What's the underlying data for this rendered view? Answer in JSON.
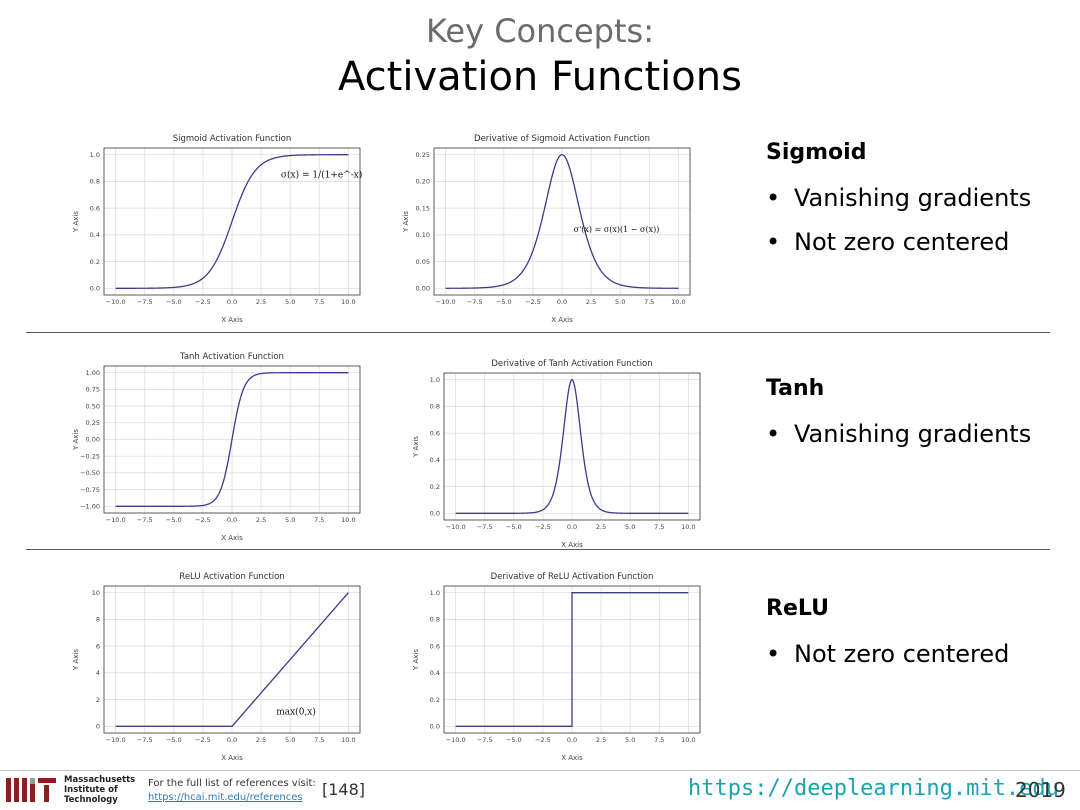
{
  "slide": {
    "kicker": "Key Concepts:",
    "title": "Activation Functions"
  },
  "sections": [
    {
      "heading": "Sigmoid",
      "bullets": [
        "Vanishing gradients",
        "Not zero centered"
      ]
    },
    {
      "heading": "Tanh",
      "bullets": [
        "Vanishing gradients"
      ]
    },
    {
      "heading": "ReLU",
      "bullets": [
        "Not zero centered"
      ]
    }
  ],
  "footer": {
    "institution": [
      "Massachusetts",
      "Institute of",
      "Technology"
    ],
    "ref_text": "For the full list of references visit:",
    "ref_link": "https://hcai.mit.edu/references",
    "ref_number": "[148]",
    "site": "https://deeplearning.mit.edu",
    "year": "2019"
  },
  "colors": {
    "line": "#3b3b8f",
    "grid": "#d9d9d9",
    "site": "#1aa3b0"
  },
  "chart_data": [
    {
      "id": "sigmoid",
      "type": "line",
      "title": "Sigmoid Activation Function",
      "xlabel": "X Axis",
      "ylabel": "Y Axis",
      "func": "sigmoid",
      "xlim": [
        -10,
        10
      ],
      "ylim": [
        0,
        1.0
      ],
      "grid": true,
      "xticks": [
        -10.0,
        -7.5,
        -5.0,
        -2.5,
        0.0,
        2.5,
        5.0,
        7.5,
        10.0
      ],
      "yticks": [
        0.0,
        0.2,
        0.4,
        0.6,
        0.8,
        1.0
      ],
      "ydec": 1,
      "annotation": "σ(x) = 1/(1+e^-x)"
    },
    {
      "id": "sigmoid-deriv",
      "type": "line",
      "title": "Derivative of Sigmoid Activation Function",
      "xlabel": "X Axis",
      "ylabel": "Y Axis",
      "func": "sigmoid_deriv",
      "xlim": [
        -10,
        10
      ],
      "ylim": [
        0,
        0.25
      ],
      "grid": true,
      "xticks": [
        -10.0,
        -7.5,
        -5.0,
        -2.5,
        0.0,
        2.5,
        5.0,
        7.5,
        10.0
      ],
      "yticks": [
        0.0,
        0.05,
        0.1,
        0.15,
        0.2,
        0.25
      ],
      "ydec": 2,
      "annotation": "σ'(x) = σ(x)(1 − σ(x))"
    },
    {
      "id": "tanh",
      "type": "line",
      "title": "Tanh Activation Function",
      "xlabel": "X Axis",
      "ylabel": "Y Axis",
      "func": "tanh",
      "xlim": [
        -10,
        10
      ],
      "ylim": [
        -1.0,
        1.0
      ],
      "grid": true,
      "xticks": [
        -10.0,
        -7.5,
        -5.0,
        -2.5,
        0.0,
        2.5,
        5.0,
        7.5,
        10.0
      ],
      "yticks": [
        -1.0,
        -0.75,
        -0.5,
        -0.25,
        0.0,
        0.25,
        0.5,
        0.75,
        1.0
      ],
      "ydec": 2,
      "annotation": ""
    },
    {
      "id": "tanh-deriv",
      "type": "line",
      "title": "Derivative of Tanh Activation Function",
      "xlabel": "X Axis",
      "ylabel": "Y Axis",
      "func": "tanh_deriv",
      "xlim": [
        -10,
        10
      ],
      "ylim": [
        0,
        1.0
      ],
      "grid": true,
      "xticks": [
        -10.0,
        -7.5,
        -5.0,
        -2.5,
        0.0,
        2.5,
        5.0,
        7.5,
        10.0
      ],
      "yticks": [
        0.0,
        0.2,
        0.4,
        0.6,
        0.8,
        1.0
      ],
      "ydec": 1,
      "annotation": ""
    },
    {
      "id": "relu",
      "type": "line",
      "title": "ReLU Activation Function",
      "xlabel": "X Axis",
      "ylabel": "Y Axis",
      "func": "relu",
      "xlim": [
        -10,
        10
      ],
      "ylim": [
        0,
        10
      ],
      "grid": true,
      "xticks": [
        -10.0,
        -7.5,
        -5.0,
        -2.5,
        0.0,
        2.5,
        5.0,
        7.5,
        10.0
      ],
      "yticks": [
        0,
        2,
        4,
        6,
        8,
        10
      ],
      "ydec": 0,
      "annotation": "max(0,x)"
    },
    {
      "id": "relu-deriv",
      "type": "line",
      "title": "Derivative of ReLU Activation Function",
      "xlabel": "X Axis",
      "ylabel": "Y Axis",
      "func": "relu_deriv",
      "xlim": [
        -10,
        10
      ],
      "ylim": [
        0,
        1.0
      ],
      "grid": true,
      "xticks": [
        -10.0,
        -7.5,
        -5.0,
        -2.5,
        0.0,
        2.5,
        5.0,
        7.5,
        10.0
      ],
      "yticks": [
        0.0,
        0.2,
        0.4,
        0.6,
        0.8,
        1.0
      ],
      "ydec": 1,
      "annotation": ""
    }
  ]
}
